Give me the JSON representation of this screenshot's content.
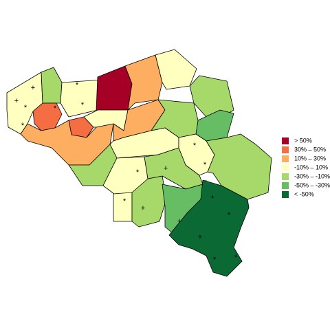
{
  "legend": [
    {
      "label": ">  50%",
      "color": "#a50026"
    },
    {
      "label": "30%  –  50%",
      "color": "#f46d43"
    },
    {
      "label": "10%  –  30%",
      "color": "#fdae61"
    },
    {
      "label": "-10%  –  10%",
      "color": "#ffffbf"
    },
    {
      "label": "-30%  – -10%",
      "color": "#a6d96a"
    },
    {
      "label": "-50%  – -30%",
      "color": "#66bd63"
    },
    {
      "label": "< -50%",
      "color": "#0b6a33"
    }
  ],
  "markers": [
    "+",
    "*",
    "+",
    "*",
    "*",
    "*",
    "*",
    "*",
    "*",
    "+",
    "*",
    "*",
    "+",
    "+",
    "+",
    "+",
    "*",
    "*",
    "*"
  ]
}
